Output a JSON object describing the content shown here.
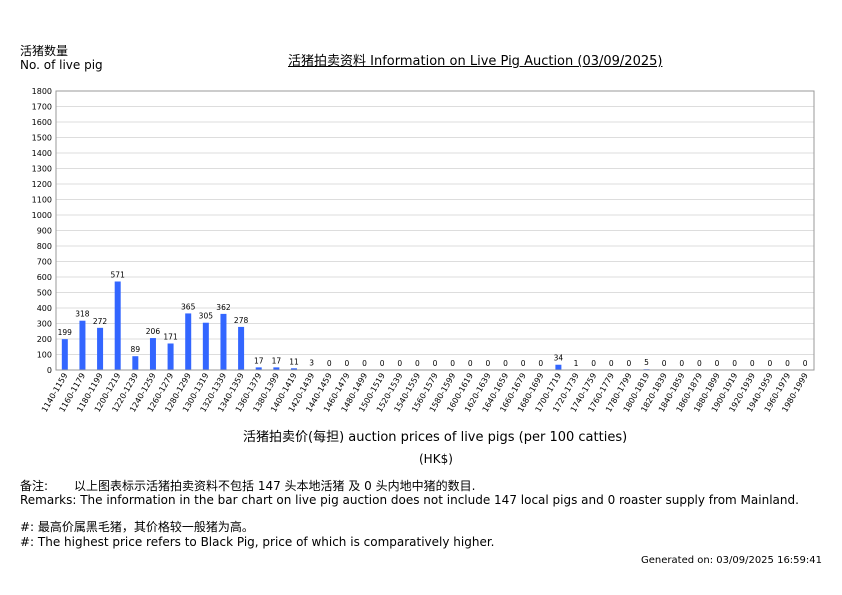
{
  "header": {
    "ylabel_cn": "活猪数量",
    "ylabel_en": "No. of live pig",
    "title": "活猪拍卖资料 Information on Live Pig Auction (03/09/2025)"
  },
  "xaxis": {
    "label": "活猪拍卖价(每担) auction prices of live pigs (per 100 catties)",
    "unit": "(HK$)"
  },
  "remarks": {
    "cn_label": "备注:",
    "cn_text": "以上图表标示活猪拍卖资料不包括 147 头本地活猪 及 0 头内地中猪的数目.",
    "en_text": "Remarks: The information in the bar chart on live pig auction does not include 147 local pigs and 0 roaster supply from Mainland.",
    "note_cn": "#: 最高价属黑毛猪，其价格较一般猪为高。",
    "note_en": "#: The highest price refers to Black Pig, price of which is comparatively higher."
  },
  "footer": {
    "generated": "Generated on: 03/09/2025 16:59:41"
  },
  "colors": {
    "bar": "#3366ff",
    "grid": "#dddddd",
    "axis": "#999999"
  },
  "chart_data": {
    "type": "bar",
    "categories": [
      "1140-1159",
      "1160-1179",
      "1180-1199",
      "1200-1219",
      "1220-1239",
      "1240-1259",
      "1260-1279",
      "1280-1299",
      "1300-1319",
      "1320-1339",
      "1340-1359",
      "1360-1379",
      "1380-1399",
      "1400-1419",
      "1420-1439",
      "1440-1459",
      "1460-1479",
      "1480-1499",
      "1500-1519",
      "1520-1539",
      "1540-1559",
      "1560-1579",
      "1580-1599",
      "1600-1619",
      "1620-1639",
      "1640-1659",
      "1660-1679",
      "1680-1699",
      "1700-1719",
      "1720-1739",
      "1740-1759",
      "1760-1779",
      "1780-1799",
      "1800-1819",
      "1820-1839",
      "1840-1859",
      "1860-1879",
      "1880-1899",
      "1900-1919",
      "1920-1939",
      "1940-1959",
      "1960-1979",
      "1980-1999"
    ],
    "values": [
      199,
      318,
      272,
      571,
      89,
      206,
      171,
      365,
      305,
      362,
      278,
      17,
      17,
      11,
      3,
      0,
      0,
      0,
      0,
      0,
      0,
      0,
      0,
      0,
      0,
      0,
      0,
      0,
      34,
      1,
      0,
      0,
      0,
      5,
      0,
      0,
      0,
      0,
      0,
      0,
      0,
      0,
      0
    ],
    "yticks": [
      0,
      100,
      200,
      300,
      400,
      500,
      600,
      700,
      800,
      900,
      1000,
      1100,
      1200,
      1300,
      1400,
      1500,
      1600,
      1700,
      1800
    ],
    "ylim": [
      0,
      1800
    ],
    "grid": true
  }
}
